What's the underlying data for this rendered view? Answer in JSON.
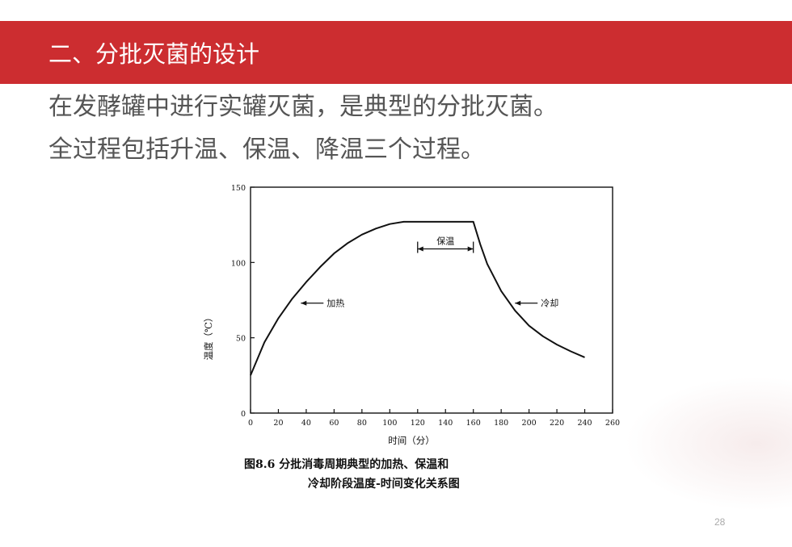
{
  "slide": {
    "title": "二、分批灭菌的设计",
    "body_lines": [
      "在发酵罐中进行实罐灭菌，是典型的分批灭菌。",
      "全过程包括升温、保温、降温三个过程。"
    ],
    "page_number": "28",
    "colors": {
      "title_bar": "#cc2d30",
      "title_text": "#ffffff",
      "body_text": "#555555"
    }
  },
  "chart_data": {
    "type": "line",
    "caption_lines": [
      "图8.6   分批消毒周期典型的加热、保温和",
      "冷却阶段温度-时间变化关系图"
    ],
    "xlabel": "时间（分）",
    "ylabel": "温度（℃）",
    "xlim": [
      0,
      260
    ],
    "ylim": [
      0,
      150
    ],
    "x_ticks": [
      0,
      20,
      40,
      60,
      80,
      100,
      120,
      140,
      160,
      180,
      200,
      220,
      240,
      260
    ],
    "y_ticks": [
      0,
      50,
      100,
      150
    ],
    "grid": false,
    "series": [
      {
        "x": [
          0,
          10,
          20,
          30,
          40,
          50,
          60,
          70,
          80,
          90,
          100,
          110,
          120,
          130,
          140,
          150,
          160,
          165,
          170,
          180,
          190,
          200,
          210,
          220,
          230,
          240
        ],
        "y": [
          25,
          47,
          63,
          76,
          87,
          97,
          106,
          113,
          118.5,
          122.5,
          125.5,
          127,
          127,
          127,
          127,
          127,
          127,
          112,
          99,
          81,
          68,
          58,
          51,
          45.5,
          41,
          37
        ]
      }
    ],
    "annotations": [
      {
        "text": "加热",
        "x": 35,
        "y": 73
      },
      {
        "text": "保温",
        "x": 140,
        "y": 109
      },
      {
        "text": "冷却",
        "x": 205,
        "y": 73
      }
    ],
    "hold_range": [
      120,
      160
    ]
  }
}
